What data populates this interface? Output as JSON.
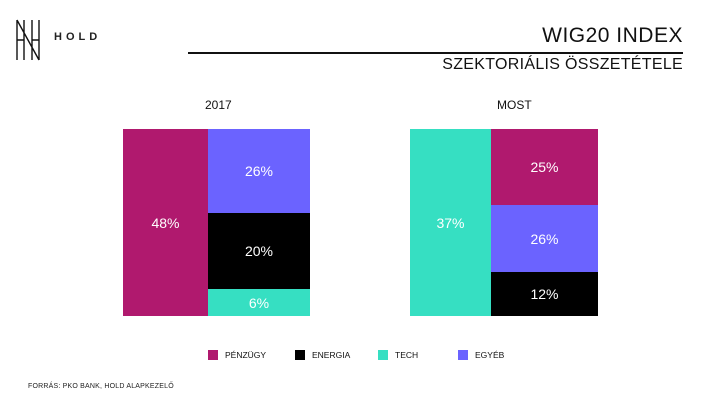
{
  "brand": {
    "logo_text": "HOLD"
  },
  "header": {
    "title": "WIG20 INDEX",
    "subtitle": "SZEKTORIÁLIS ÖSSZETÉTELE"
  },
  "chart_data": {
    "type": "bar",
    "variant": "stacked-mosaic",
    "panels": [
      {
        "label": "2017",
        "segments": [
          {
            "sector": "PÉNZÜGY",
            "value": 48,
            "label": "48%"
          },
          {
            "sector": "EGYÉB",
            "value": 26,
            "label": "26%"
          },
          {
            "sector": "ENERGIA",
            "value": 20,
            "label": "20%"
          },
          {
            "sector": "TECH",
            "value": 6,
            "label": "6%"
          }
        ]
      },
      {
        "label": "MOST",
        "segments": [
          {
            "sector": "TECH",
            "value": 37,
            "label": "37%"
          },
          {
            "sector": "PÉNZÜGY",
            "value": 25,
            "label": "25%"
          },
          {
            "sector": "EGYÉB",
            "value": 26,
            "label": "26%"
          },
          {
            "sector": "ENERGIA",
            "value": 12,
            "label": "12%"
          }
        ]
      }
    ],
    "legend": [
      {
        "name": "PÉNZÜGY",
        "color": "#b0196e"
      },
      {
        "name": "ENERGIA",
        "color": "#000000"
      },
      {
        "name": "TECH",
        "color": "#36dfc2"
      },
      {
        "name": "EGYÉB",
        "color": "#6b63ff"
      }
    ],
    "legend_placement": "bottom"
  },
  "footer": {
    "source": "FORRÁS: PKO BANK, HOLD ALAPKEZELŐ"
  }
}
